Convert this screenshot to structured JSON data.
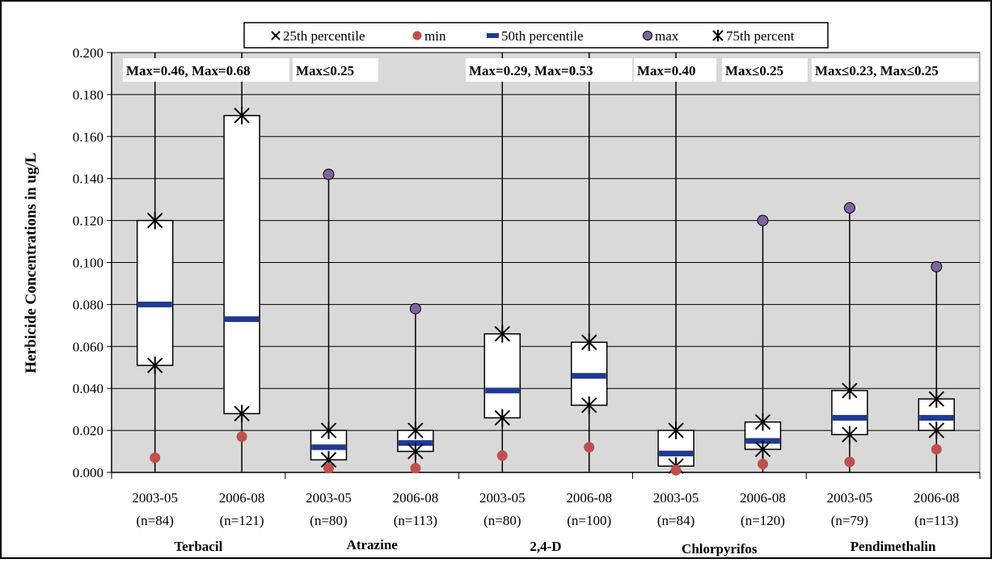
{
  "chart_data": {
    "type": "box",
    "ylabel": "Herbicide Concentrations  in ug/L",
    "ylim": [
      0,
      0.2
    ],
    "yticks": [
      "0.000",
      "0.020",
      "0.040",
      "0.060",
      "0.080",
      "0.100",
      "0.120",
      "0.140",
      "0.160",
      "0.180",
      "0.200"
    ],
    "grid": true,
    "colors": {
      "plot_bg": "#d9d9d9",
      "box_fill": "#ffffff",
      "median": "#1f3a93",
      "min_marker": "#c0504d",
      "max_marker": "#8064a2"
    },
    "legend": {
      "placement": "top-center",
      "entries": [
        {
          "label": "25th percentile",
          "marker": "x-icon"
        },
        {
          "label": "min",
          "marker": "red-dot-icon"
        },
        {
          "label": "50th percentile",
          "marker": "blue-dash-icon"
        },
        {
          "label": "max",
          "marker": "purple-dot-icon"
        },
        {
          "label": "75th percent",
          "marker": "star-icon"
        }
      ]
    },
    "groups": [
      {
        "name": "Terbacil",
        "annotation": "Max=0.46, Max=0.68"
      },
      {
        "name": "Atrazine",
        "annotation": "Max≤0.25"
      },
      {
        "name": "2,4-D",
        "annotation": "Max=0.29, Max=0.53"
      },
      {
        "name": "Chlorpyrifos",
        "annotation": "Max=0.40"
      },
      {
        "name": "Pendimethalin",
        "annotation": "Max≤0.25"
      }
    ],
    "extra_annotation": "Max≤0.23, Max≤0.25",
    "boxes": [
      {
        "group": 0,
        "period": "2003-05",
        "n": "(n=84)",
        "p25": 0.051,
        "p50": 0.08,
        "p75": 0.12,
        "min": 0.007,
        "max": null
      },
      {
        "group": 0,
        "period": "2006-08",
        "n": "(n=121)",
        "p25": 0.028,
        "p50": 0.073,
        "p75": 0.17,
        "min": 0.017,
        "max": null
      },
      {
        "group": 1,
        "period": "2003-05",
        "n": "(n=80)",
        "p25": 0.006,
        "p50": 0.012,
        "p75": 0.02,
        "min": 0.002,
        "max": 0.142
      },
      {
        "group": 1,
        "period": "2006-08",
        "n": "(n=113)",
        "p25": 0.01,
        "p50": 0.014,
        "p75": 0.02,
        "min": 0.002,
        "max": 0.078
      },
      {
        "group": 2,
        "period": "2003-05",
        "n": "(n=80)",
        "p25": 0.026,
        "p50": 0.039,
        "p75": 0.066,
        "min": 0.008,
        "max": null
      },
      {
        "group": 2,
        "period": "2006-08",
        "n": "(n=100)",
        "p25": 0.032,
        "p50": 0.046,
        "p75": 0.062,
        "min": 0.012,
        "max": null
      },
      {
        "group": 3,
        "period": "2003-05",
        "n": "(n=84)",
        "p25": 0.003,
        "p50": 0.009,
        "p75": 0.02,
        "min": 0.001,
        "max": null
      },
      {
        "group": 3,
        "period": "2006-08",
        "n": "(n=120)",
        "p25": 0.011,
        "p50": 0.015,
        "p75": 0.024,
        "min": 0.004,
        "max": 0.12
      },
      {
        "group": 4,
        "period": "2003-05",
        "n": "(n=79)",
        "p25": 0.018,
        "p50": 0.026,
        "p75": 0.039,
        "min": 0.005,
        "max": 0.126
      },
      {
        "group": 4,
        "period": "2006-08",
        "n": "(n=113)",
        "p25": 0.02,
        "p50": 0.026,
        "p75": 0.035,
        "min": 0.011,
        "max": 0.098
      }
    ]
  }
}
